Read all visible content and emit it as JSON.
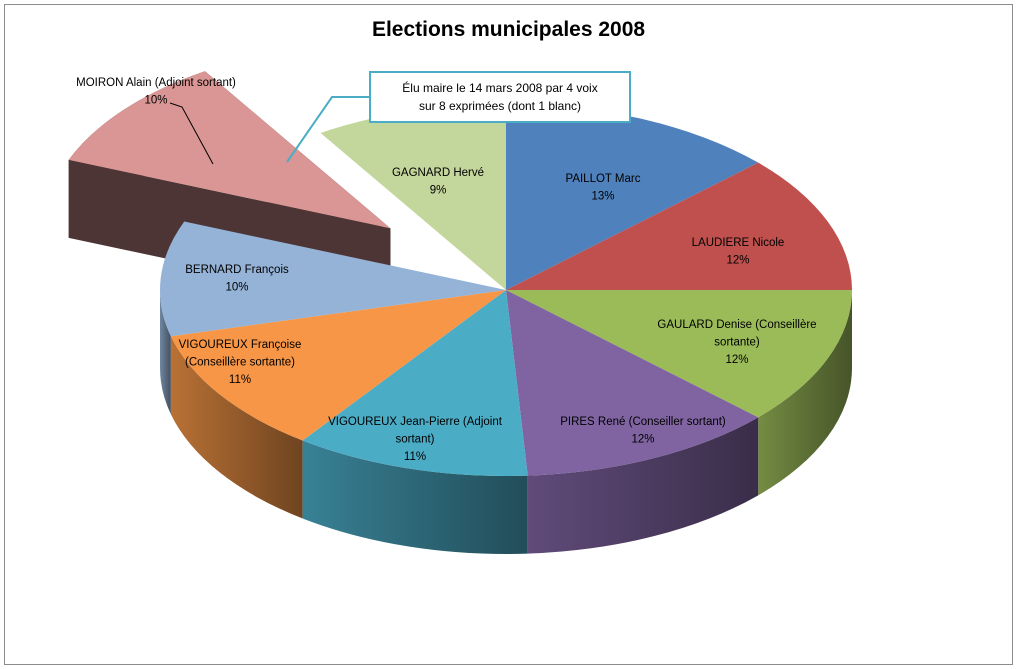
{
  "chart_data": {
    "type": "pie",
    "title": "Elections municipales 2008",
    "style": "3d-exploded",
    "slices": [
      {
        "name": "PAILLOT Marc",
        "label_lines": [
          "PAILLOT Marc"
        ],
        "percent_label": "13%",
        "value": 13,
        "color": "#4f81bd"
      },
      {
        "name": "LAUDIERE Nicole",
        "label_lines": [
          "LAUDIERE Nicole"
        ],
        "percent_label": "12%",
        "value": 12,
        "color": "#c0504d"
      },
      {
        "name": "GAULARD Denise (Conseillère sortante)",
        "label_lines": [
          "GAULARD Denise (Conseillère",
          "sortante)"
        ],
        "percent_label": "12%",
        "value": 12,
        "color": "#9bbb59"
      },
      {
        "name": "PIRES René (Conseiller sortant)",
        "label_lines": [
          "PIRES René (Conseiller sortant)"
        ],
        "percent_label": "12%",
        "value": 12,
        "color": "#8064a2"
      },
      {
        "name": "VIGOUREUX Jean-Pierre (Adjoint sortant)",
        "label_lines": [
          "VIGOUREUX Jean-Pierre (Adjoint",
          "sortant)"
        ],
        "percent_label": "11%",
        "value": 11,
        "color": "#4bacc6"
      },
      {
        "name": "VIGOUREUX Françoise (Conseillère sortante)",
        "label_lines": [
          "VIGOUREUX Françoise",
          "(Conseillère sortante)"
        ],
        "percent_label": "11%",
        "value": 11,
        "color": "#f79646"
      },
      {
        "name": "BERNARD François",
        "label_lines": [
          "BERNARD François"
        ],
        "percent_label": "10%",
        "value": 10,
        "color": "#95b3d7"
      },
      {
        "name": "MOIRON Alain (Adjoint sortant)",
        "label_lines": [
          "MOIRON Alain (Adjoint sortant)"
        ],
        "percent_label": "10%",
        "value": 10,
        "color": "#d99694",
        "exploded": true
      },
      {
        "name": "GAGNARD Hervé",
        "label_lines": [
          "GAGNARD Hervé"
        ],
        "percent_label": "9%",
        "value": 9,
        "color": "#c3d69b"
      }
    ],
    "annotation": {
      "lines": [
        "Élu maire le 14 mars 2008  par 4 voix",
        "sur 8 exprimées (dont 1 blanc)"
      ],
      "points_to": "MOIRON Alain (Adjoint sortant)",
      "border_color": "#4bacc6"
    }
  }
}
